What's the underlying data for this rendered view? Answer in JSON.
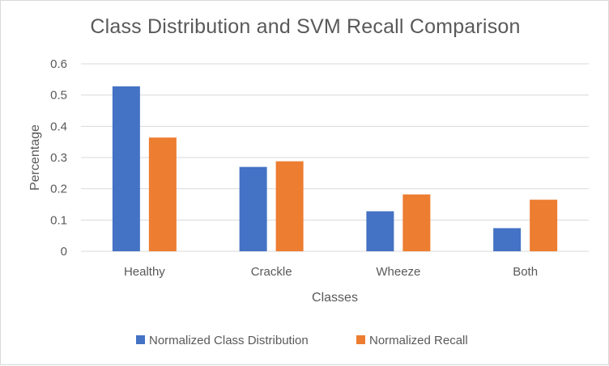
{
  "chart_data": {
    "type": "bar",
    "title": "Class Distribution and SVM Recall Comparison",
    "xlabel": "Classes",
    "ylabel": "Percentage",
    "categories": [
      "Healthy",
      "Crackle",
      "Wheeze",
      "Both"
    ],
    "series": [
      {
        "name": "Normalized Class Distribution",
        "values": [
          0.528,
          0.27,
          0.128,
          0.074
        ],
        "color": "#4472c4"
      },
      {
        "name": "Normalized Recall",
        "values": [
          0.364,
          0.288,
          0.182,
          0.165
        ],
        "color": "#ed7d31"
      }
    ],
    "ylim": [
      0,
      0.6
    ],
    "yticks": [
      "0",
      "0.1",
      "0.2",
      "0.3",
      "0.4",
      "0.5",
      "0.6"
    ],
    "grid": true,
    "legend_position": "bottom"
  }
}
